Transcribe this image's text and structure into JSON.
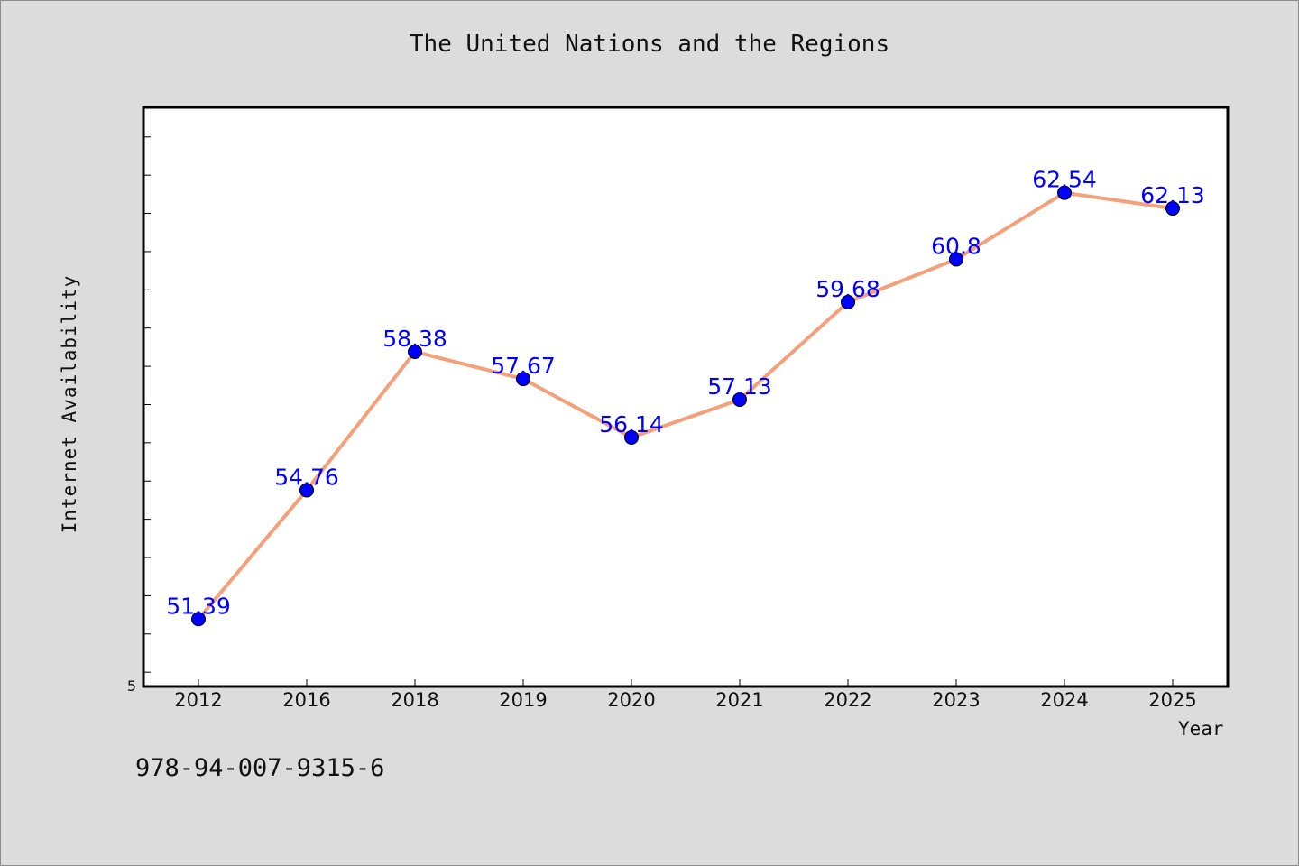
{
  "chart_data": {
    "type": "line",
    "title": "The United Nations and the Regions",
    "xlabel": "Year",
    "ylabel": "Internet Availability",
    "categories": [
      "2012",
      "2016",
      "2018",
      "2019",
      "2020",
      "2021",
      "2022",
      "2023",
      "2024",
      "2025"
    ],
    "series": [
      {
        "values": [
          51.39,
          54.76,
          58.38,
          57.67,
          56.14,
          57.13,
          59.68,
          60.8,
          62.54,
          62.13
        ],
        "value_labels": [
          "51.39",
          "54.76",
          "58.38",
          "57.67",
          "56.14",
          "57.13",
          "59.68",
          "60.8",
          "62.54",
          "62.13"
        ],
        "line_color": "#f4a07a",
        "marker_color": "#0000ff",
        "label_color": "#0000ff"
      }
    ],
    "ylim": [
      49.65,
      64.75
    ],
    "y_tick_label": "5",
    "y_tick_values": [
      50,
      51,
      52,
      53,
      54,
      55,
      56,
      57,
      58,
      59,
      60,
      61,
      62,
      63,
      64
    ],
    "grid": false,
    "legend": "none"
  },
  "footer": {
    "isbn": "978-94-007-9315-6"
  },
  "colors": {
    "background": "#dcdcdc",
    "plot_area": "#ffffff"
  }
}
